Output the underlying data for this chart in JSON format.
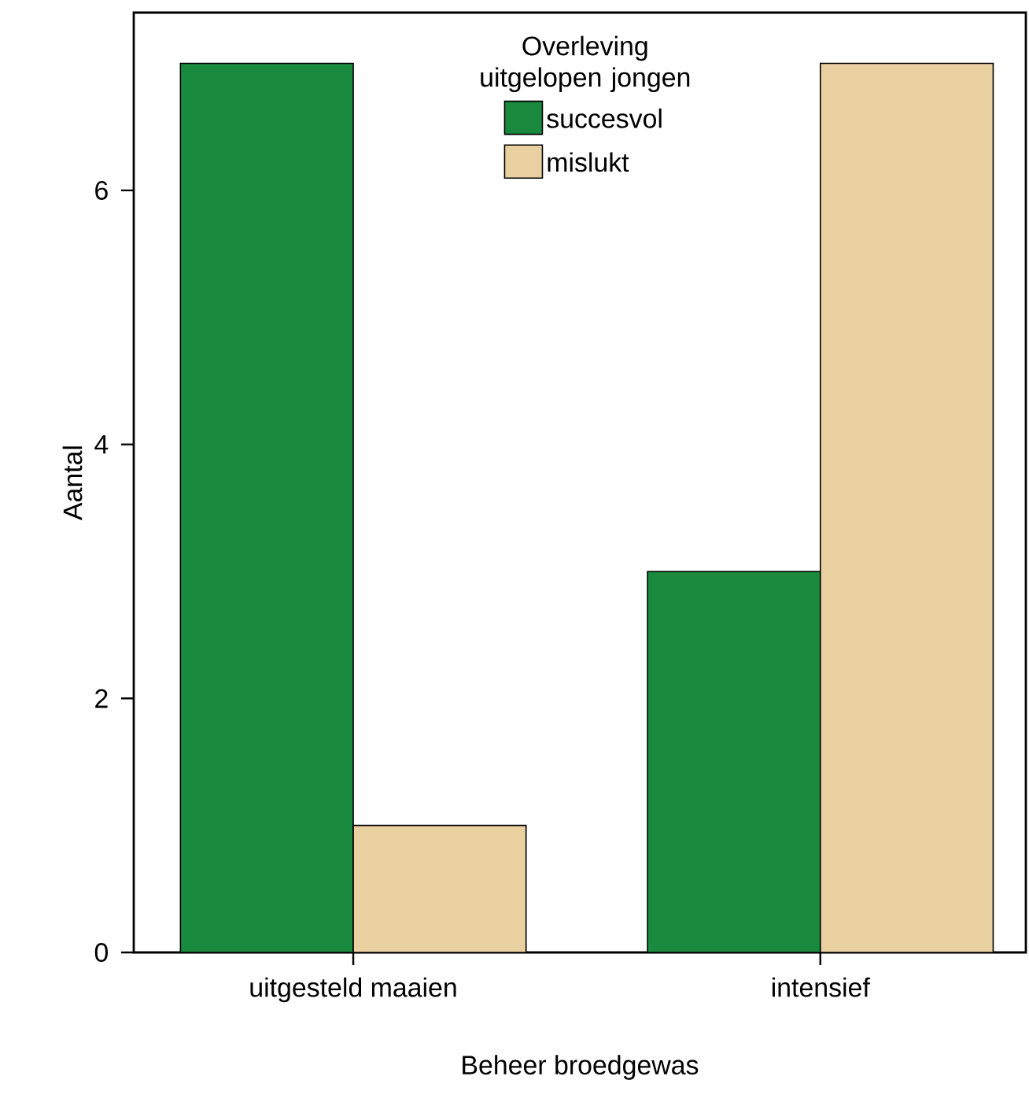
{
  "chart_data": {
    "type": "bar",
    "xlabel": "Beheer broedgewas",
    "ylabel": "Aantal",
    "legend_title": "Overleving uitgelopen jongen",
    "categories": [
      "uitgesteld maaien",
      "intensief"
    ],
    "series": [
      {
        "name": "succesvol",
        "color": "#1a8a3e",
        "values": [
          7,
          3
        ]
      },
      {
        "name": "mislukt",
        "color": "#e8d0a0",
        "values": [
          1,
          7
        ]
      }
    ],
    "ylim": [
      0,
      7.4
    ],
    "yticks": [
      0,
      2,
      4,
      6
    ],
    "grid": false,
    "legend": "top"
  }
}
